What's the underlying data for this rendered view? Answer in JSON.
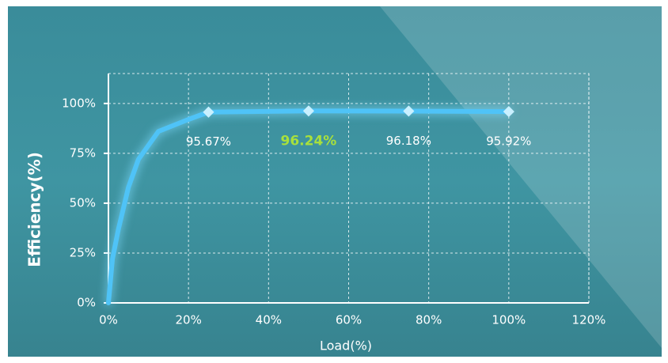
{
  "chart_data": {
    "type": "line",
    "x_label": "Load(%)",
    "y_label": "Efficiency(%)",
    "x": [
      0,
      1,
      2.5,
      5,
      7.5,
      12.5,
      20,
      25,
      50,
      75,
      100
    ],
    "values": [
      0,
      22,
      37,
      58,
      72,
      86,
      92,
      95.67,
      96.24,
      96.18,
      95.92
    ],
    "value_labels": [
      null,
      null,
      null,
      null,
      null,
      null,
      null,
      "95.67%",
      "96.24%",
      "96.18%",
      "95.92%"
    ],
    "highlight_color": "#a8e03c",
    "color": "#4fc3f7",
    "xlim": [
      0,
      120
    ],
    "ylim": [
      0,
      115
    ],
    "xticks": [
      {
        "value": 0,
        "label": "0%"
      },
      {
        "value": 20,
        "label": "20%"
      },
      {
        "value": 40,
        "label": "40%"
      },
      {
        "value": 60,
        "label": "60%"
      },
      {
        "value": 80,
        "label": "80%"
      },
      {
        "value": 100,
        "label": "100%"
      },
      {
        "value": 120,
        "label": "120%"
      }
    ],
    "yticks": [
      {
        "value": 0,
        "label": "0%"
      },
      {
        "value": 25,
        "label": "25%"
      },
      {
        "value": 50,
        "label": "50%"
      },
      {
        "value": 75,
        "label": "75%"
      },
      {
        "value": 100,
        "label": "100%"
      }
    ],
    "grid": true
  }
}
